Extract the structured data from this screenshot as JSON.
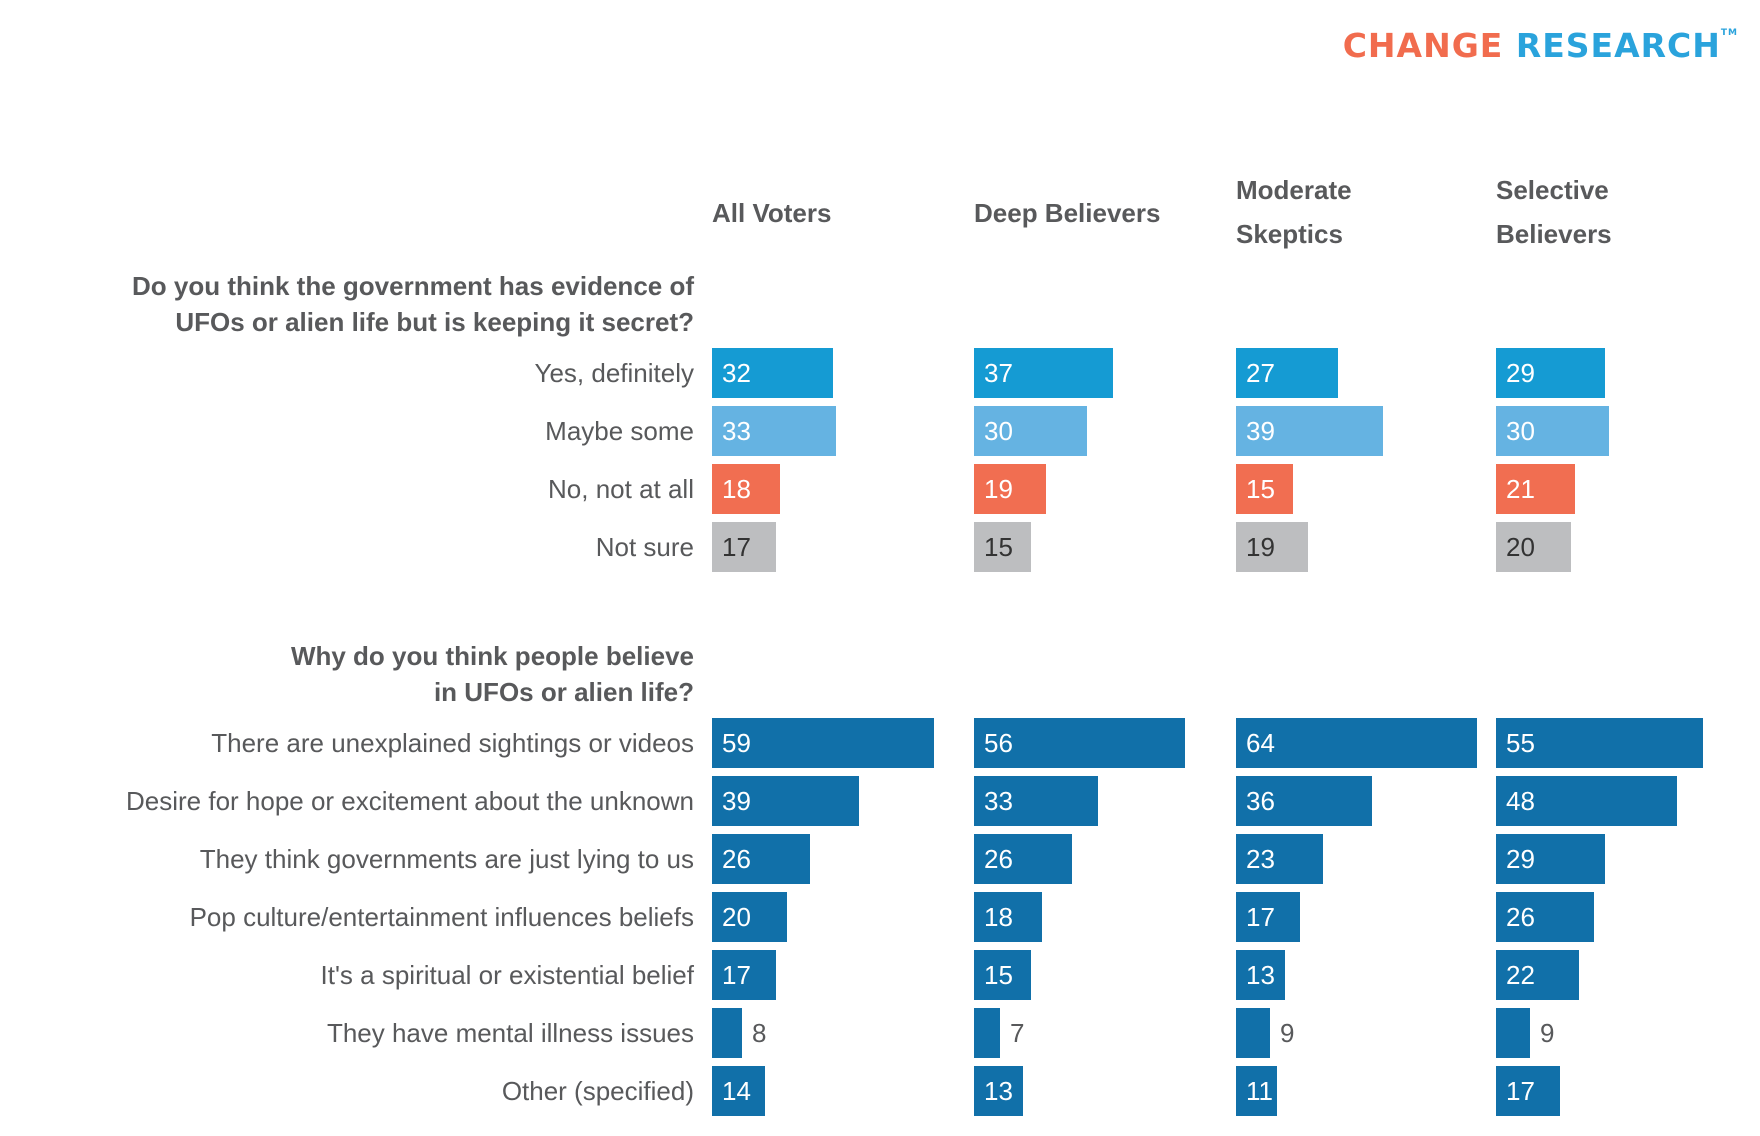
{
  "logo": {
    "word1": "CHANGE",
    "word2": "RESEARCH",
    "tm": "TM",
    "color1": "#f16c4e",
    "color2": "#2aa3dc"
  },
  "colors": {
    "yes_definitely": "#159bd3",
    "maybe_some": "#65b3e2",
    "no_not_at_all": "#f16e51",
    "not_sure": "#bdbec0",
    "reasons": "#1170a9",
    "label_inside_light": "#ffffff",
    "label_inside_dark": "#333333",
    "label_outside": "#58595b"
  },
  "columns": [
    {
      "line1": "All Voters",
      "line2": ""
    },
    {
      "line1": "Deep Believers",
      "line2": ""
    },
    {
      "line1": "Moderate",
      "line2": "Skeptics"
    },
    {
      "line1": "Selective",
      "line2": "Believers"
    }
  ],
  "chart_data": [
    {
      "type": "bar",
      "orientation": "horizontal",
      "title": "Do you think the government has evidence of UFOs or alien life but is keeping it secret?",
      "title_lines": [
        "Do you think the government has evidence of",
        "UFOs or alien life but is keeping it secret?"
      ],
      "categories": [
        "Yes, definitely",
        "Maybe some",
        "No, not at all",
        "Not sure"
      ],
      "category_colors": [
        "yes_definitely",
        "maybe_some",
        "no_not_at_all",
        "not_sure"
      ],
      "series": [
        {
          "name": "All Voters",
          "values": [
            32,
            33,
            18,
            17
          ]
        },
        {
          "name": "Deep Believers",
          "values": [
            37,
            30,
            19,
            15
          ]
        },
        {
          "name": "Moderate Skeptics",
          "values": [
            27,
            39,
            15,
            19
          ]
        },
        {
          "name": "Selective Believers",
          "values": [
            29,
            30,
            21,
            20
          ]
        }
      ],
      "unit": "%",
      "xlim": [
        0,
        100
      ]
    },
    {
      "type": "bar",
      "orientation": "horizontal",
      "title": "Why do you think people believe in UFOs or alien life?",
      "title_lines": [
        "Why do you think people believe",
        "in UFOs or alien life?"
      ],
      "categories": [
        "There are unexplained sightings or videos",
        "Desire for hope or excitement about the unknown",
        "They think governments are just lying to us",
        "Pop culture/entertainment influences beliefs",
        "It's a spiritual or existential belief",
        "They have mental illness issues",
        "Other (specified)"
      ],
      "category_colors": [
        "reasons",
        "reasons",
        "reasons",
        "reasons",
        "reasons",
        "reasons",
        "reasons"
      ],
      "series": [
        {
          "name": "All Voters",
          "values": [
            59,
            39,
            26,
            20,
            17,
            8,
            14
          ]
        },
        {
          "name": "Deep Believers",
          "values": [
            56,
            33,
            26,
            18,
            15,
            7,
            13
          ]
        },
        {
          "name": "Moderate Skeptics",
          "values": [
            64,
            36,
            23,
            17,
            13,
            9,
            11
          ]
        },
        {
          "name": "Selective Believers",
          "values": [
            55,
            48,
            29,
            26,
            22,
            9,
            17
          ]
        }
      ],
      "unit": "%",
      "xlim": [
        0,
        100
      ]
    }
  ]
}
